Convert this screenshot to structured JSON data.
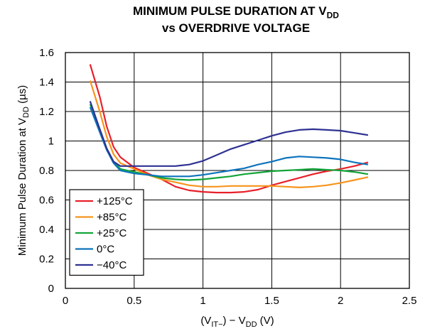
{
  "chart_data": {
    "type": "line",
    "title_line1": "MINIMUM PULSE DURATION AT V",
    "title_line1_sub": "DD",
    "title_line2": "vs OVERDRIVE VOLTAGE",
    "ylabel": "Minimum Pulse Duration at V",
    "ylabel_sub": "DD",
    "ylabel_unit": " (µs)",
    "xlabel_parts": [
      "(V",
      "IT−",
      ") − V",
      "DD",
      " (V)"
    ],
    "xlim": [
      0,
      2.5
    ],
    "ylim": [
      0,
      1.6
    ],
    "xticks": [
      "0",
      "0.5",
      "1",
      "1.5",
      "2",
      "2.5"
    ],
    "xtick_values": [
      0,
      0.5,
      1,
      1.5,
      2,
      2.5
    ],
    "yticks": [
      "0",
      "0.2",
      "0.4",
      "0.6",
      "0.8",
      "1",
      "1.2",
      "1.4",
      "1.6"
    ],
    "ytick_values": [
      0,
      0.2,
      0.4,
      0.6,
      0.8,
      1,
      1.2,
      1.4,
      1.6
    ],
    "grid": true,
    "legend_position": "bottom-left",
    "series": [
      {
        "name": "+125°C",
        "color": "#e8202a",
        "x": [
          0.18,
          0.25,
          0.3,
          0.35,
          0.4,
          0.5,
          0.6,
          0.7,
          0.8,
          0.9,
          1.0,
          1.1,
          1.2,
          1.3,
          1.4,
          1.5,
          1.6,
          1.7,
          1.8,
          1.9,
          2.0,
          2.1,
          2.2
        ],
        "y": [
          1.52,
          1.3,
          1.1,
          0.96,
          0.89,
          0.82,
          0.78,
          0.74,
          0.69,
          0.665,
          0.655,
          0.65,
          0.65,
          0.655,
          0.67,
          0.7,
          0.725,
          0.75,
          0.775,
          0.795,
          0.81,
          0.83,
          0.855
        ]
      },
      {
        "name": "+85°C",
        "color": "#f7941d",
        "x": [
          0.18,
          0.25,
          0.3,
          0.35,
          0.4,
          0.5,
          0.6,
          0.7,
          0.8,
          0.9,
          1.0,
          1.1,
          1.2,
          1.3,
          1.4,
          1.5,
          1.6,
          1.7,
          1.8,
          1.9,
          2.0,
          2.1,
          2.2
        ],
        "y": [
          1.41,
          1.2,
          1.03,
          0.91,
          0.85,
          0.81,
          0.77,
          0.74,
          0.72,
          0.7,
          0.69,
          0.69,
          0.695,
          0.695,
          0.695,
          0.695,
          0.69,
          0.685,
          0.69,
          0.7,
          0.715,
          0.735,
          0.755
        ]
      },
      {
        "name": "+25°C",
        "color": "#13a538",
        "x": [
          0.18,
          0.25,
          0.3,
          0.35,
          0.4,
          0.5,
          0.6,
          0.7,
          0.8,
          0.9,
          1.0,
          1.1,
          1.2,
          1.3,
          1.4,
          1.5,
          1.6,
          1.7,
          1.8,
          1.9,
          2.0,
          2.1,
          2.2
        ],
        "y": [
          1.25,
          1.08,
          0.95,
          0.86,
          0.81,
          0.79,
          0.77,
          0.75,
          0.74,
          0.735,
          0.74,
          0.75,
          0.76,
          0.775,
          0.785,
          0.795,
          0.8,
          0.805,
          0.81,
          0.805,
          0.8,
          0.79,
          0.775
        ]
      },
      {
        "name": "0°C",
        "color": "#0d74bc",
        "x": [
          0.18,
          0.25,
          0.3,
          0.35,
          0.4,
          0.5,
          0.6,
          0.7,
          0.8,
          0.9,
          1.0,
          1.1,
          1.2,
          1.3,
          1.4,
          1.5,
          1.6,
          1.7,
          1.8,
          1.9,
          2.0,
          2.1,
          2.2
        ],
        "y": [
          1.23,
          1.06,
          0.94,
          0.85,
          0.8,
          0.78,
          0.77,
          0.76,
          0.76,
          0.76,
          0.77,
          0.785,
          0.8,
          0.815,
          0.84,
          0.86,
          0.885,
          0.895,
          0.89,
          0.885,
          0.875,
          0.855,
          0.84
        ]
      },
      {
        "name": "−40°C",
        "color": "#2e3192",
        "x": [
          0.18,
          0.25,
          0.3,
          0.35,
          0.4,
          0.5,
          0.6,
          0.7,
          0.8,
          0.9,
          1.0,
          1.1,
          1.2,
          1.3,
          1.4,
          1.5,
          1.6,
          1.7,
          1.8,
          1.9,
          2.0,
          2.1,
          2.2
        ],
        "y": [
          1.27,
          1.08,
          0.95,
          0.86,
          0.83,
          0.83,
          0.83,
          0.83,
          0.83,
          0.84,
          0.865,
          0.905,
          0.945,
          0.975,
          1.005,
          1.035,
          1.06,
          1.075,
          1.08,
          1.075,
          1.07,
          1.055,
          1.04
        ]
      }
    ]
  }
}
